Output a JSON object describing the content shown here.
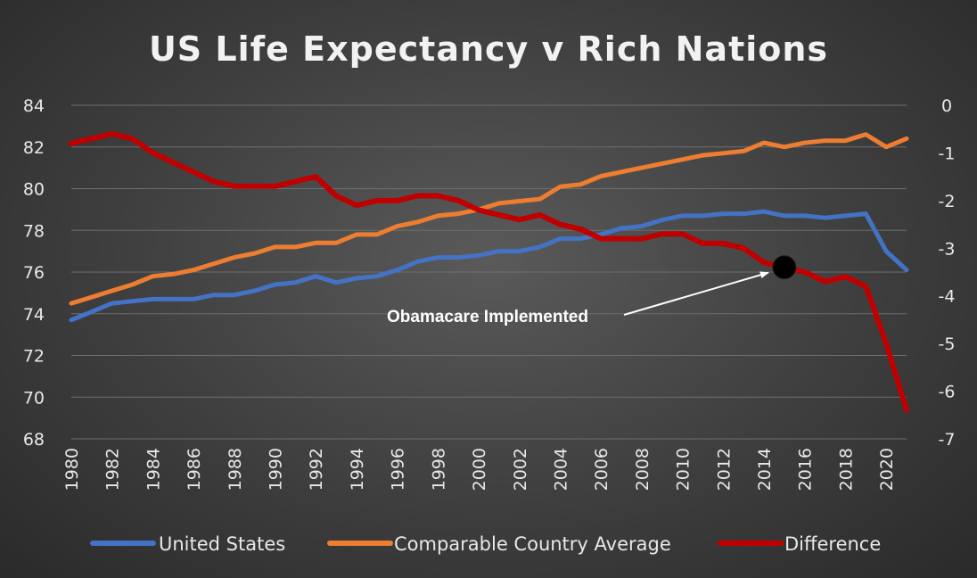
{
  "chart_data": {
    "type": "line",
    "title": "US Life Expectancy v Rich Nations",
    "x": [
      1980,
      1981,
      1982,
      1983,
      1984,
      1985,
      1986,
      1987,
      1988,
      1989,
      1990,
      1991,
      1992,
      1993,
      1994,
      1995,
      1996,
      1997,
      1998,
      1999,
      2000,
      2001,
      2002,
      2003,
      2004,
      2005,
      2006,
      2007,
      2008,
      2009,
      2010,
      2011,
      2012,
      2013,
      2014,
      2015,
      2016,
      2017,
      2018,
      2019,
      2020,
      2021
    ],
    "x_tick_labels": [
      "1980",
      "1982",
      "1984",
      "1986",
      "1988",
      "1990",
      "1992",
      "1994",
      "1996",
      "1998",
      "2000",
      "2002",
      "2004",
      "2006",
      "2008",
      "2010",
      "2012",
      "2014",
      "2016",
      "2018",
      "2020"
    ],
    "y_left": {
      "range": [
        68,
        84
      ],
      "ticks": [
        "84",
        "82",
        "80",
        "78",
        "76",
        "74",
        "72",
        "70",
        "68"
      ]
    },
    "y_right": {
      "range": [
        -7,
        0
      ],
      "ticks": [
        "0",
        "-1",
        "-2",
        "-3",
        "-4",
        "-5",
        "-6",
        "-7"
      ]
    },
    "grid": true,
    "legend_position": "bottom",
    "series": [
      {
        "name": "United States",
        "axis": "left",
        "color": "#4472c4",
        "values": [
          73.7,
          74.1,
          74.5,
          74.6,
          74.7,
          74.7,
          74.7,
          74.9,
          74.9,
          75.1,
          75.4,
          75.5,
          75.8,
          75.5,
          75.7,
          75.8,
          76.1,
          76.5,
          76.7,
          76.7,
          76.8,
          77.0,
          77.0,
          77.2,
          77.6,
          77.6,
          77.8,
          78.1,
          78.2,
          78.5,
          78.7,
          78.7,
          78.8,
          78.8,
          78.9,
          78.7,
          78.7,
          78.6,
          78.7,
          78.8,
          77.0,
          76.1
        ]
      },
      {
        "name": "Comparable Country Average",
        "axis": "left",
        "color": "#ed7d31",
        "values": [
          74.5,
          74.8,
          75.1,
          75.4,
          75.8,
          75.9,
          76.1,
          76.4,
          76.7,
          76.9,
          77.2,
          77.2,
          77.4,
          77.4,
          77.8,
          77.8,
          78.2,
          78.4,
          78.7,
          78.8,
          79.0,
          79.3,
          79.4,
          79.5,
          80.1,
          80.2,
          80.6,
          80.8,
          81.0,
          81.2,
          81.4,
          81.6,
          81.7,
          81.8,
          82.2,
          82.0,
          82.2,
          82.3,
          82.3,
          82.6,
          82.0,
          82.4
        ]
      },
      {
        "name": "Difference",
        "axis": "right",
        "color": "#c00000",
        "values": [
          -0.8,
          -0.7,
          -0.6,
          -0.7,
          -1.0,
          -1.2,
          -1.4,
          -1.6,
          -1.7,
          -1.7,
          -1.7,
          -1.6,
          -1.5,
          -1.9,
          -2.1,
          -2.0,
          -2.0,
          -1.9,
          -1.9,
          -2.0,
          -2.2,
          -2.3,
          -2.4,
          -2.3,
          -2.5,
          -2.6,
          -2.8,
          -2.8,
          -2.8,
          -2.7,
          -2.7,
          -2.9,
          -2.9,
          -3.0,
          -3.3,
          -3.4,
          -3.5,
          -3.7,
          -3.6,
          -3.8,
          -5.0,
          -6.4
        ]
      }
    ],
    "annotations": [
      {
        "text": "Obamacare Implemented",
        "point_x": 2015,
        "point_value": -3.4,
        "axis": "right"
      }
    ]
  }
}
